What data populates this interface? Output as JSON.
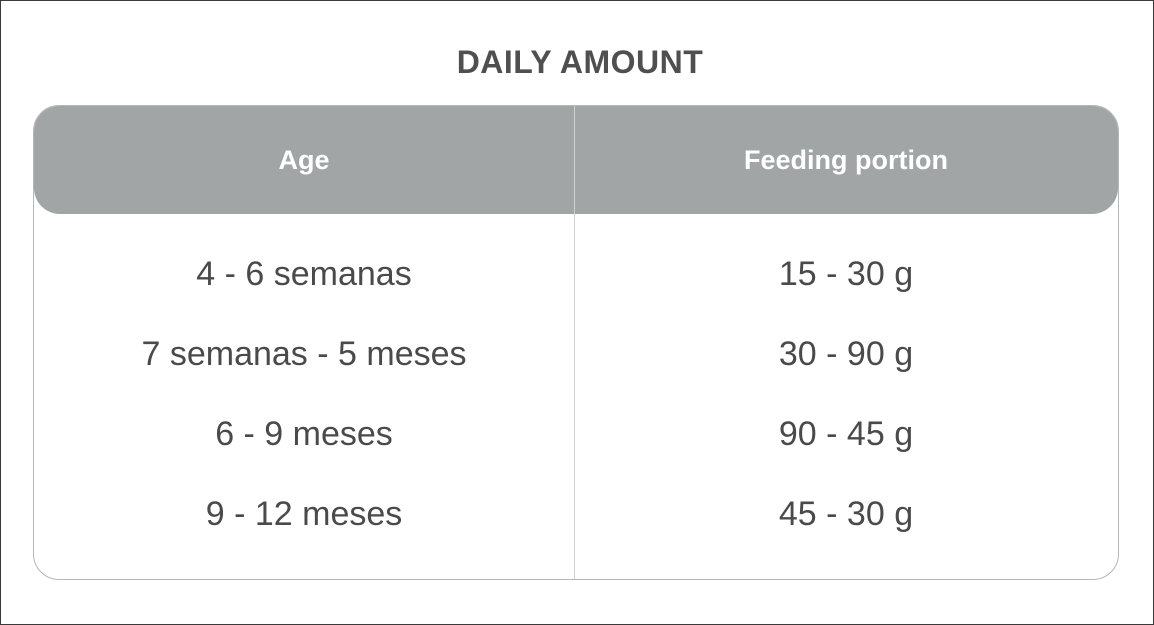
{
  "title": "DAILY AMOUNT",
  "columns": {
    "age": "Age",
    "portion": "Feeding portion"
  },
  "rows": [
    {
      "age": "4 - 6 semanas",
      "portion": "15 - 30 g"
    },
    {
      "age": "7 semanas - 5 meses",
      "portion": "30 - 90 g"
    },
    {
      "age": "6 - 9 meses",
      "portion": "90 - 45 g"
    },
    {
      "age": "9 - 12 meses",
      "portion": "45 - 30 g"
    }
  ],
  "colors": {
    "header_bg": "#a2a5a6",
    "text": "#4a4a4a",
    "title": "#4f4f4f",
    "border": "#b5b7b8"
  }
}
